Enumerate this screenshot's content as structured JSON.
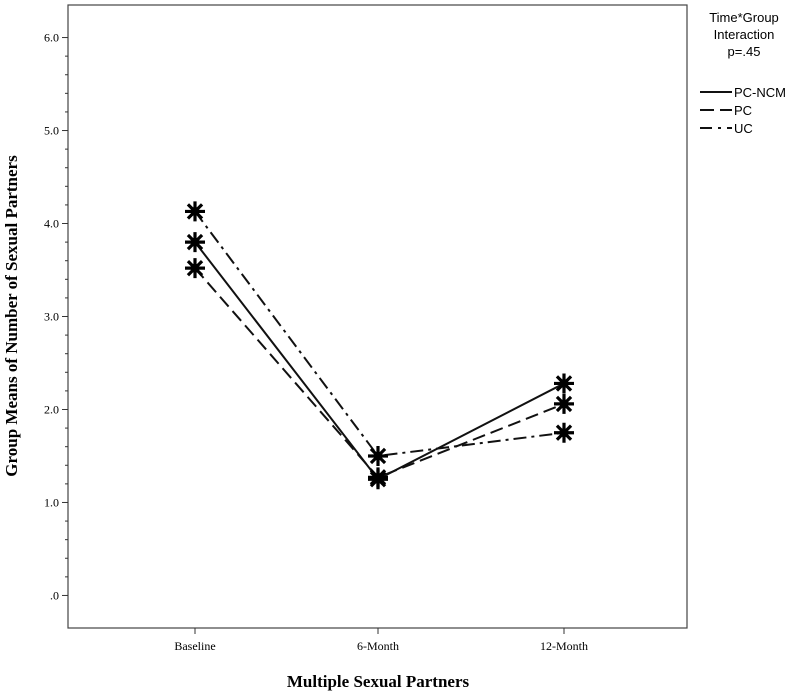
{
  "chart_data": {
    "type": "line",
    "title": "",
    "xlabel": "Multiple Sexual Partners",
    "ylabel": "Group Means of Number of Sexual Partners",
    "categories": [
      "Baseline",
      "6-Month",
      "12-Month"
    ],
    "ylim": [
      -0.35,
      6.35
    ],
    "yticks": [
      0,
      1,
      2,
      3,
      4,
      5,
      6
    ],
    "ytick_labels": [
      ".0",
      "1.0",
      "2.0",
      "3.0",
      "4.0",
      "5.0",
      "6.0"
    ],
    "legend": {
      "title_lines": [
        "Time*Group",
        "Interaction",
        "p=.45"
      ],
      "placement": "right"
    },
    "series": [
      {
        "name": "PC-NCM",
        "dash": "solid",
        "values": [
          3.8,
          1.25,
          2.28
        ]
      },
      {
        "name": "PC",
        "dash": "dash",
        "values": [
          3.52,
          1.27,
          2.06
        ]
      },
      {
        "name": "UC",
        "dash": "dashdot",
        "values": [
          4.13,
          1.5,
          1.75
        ]
      }
    ]
  }
}
